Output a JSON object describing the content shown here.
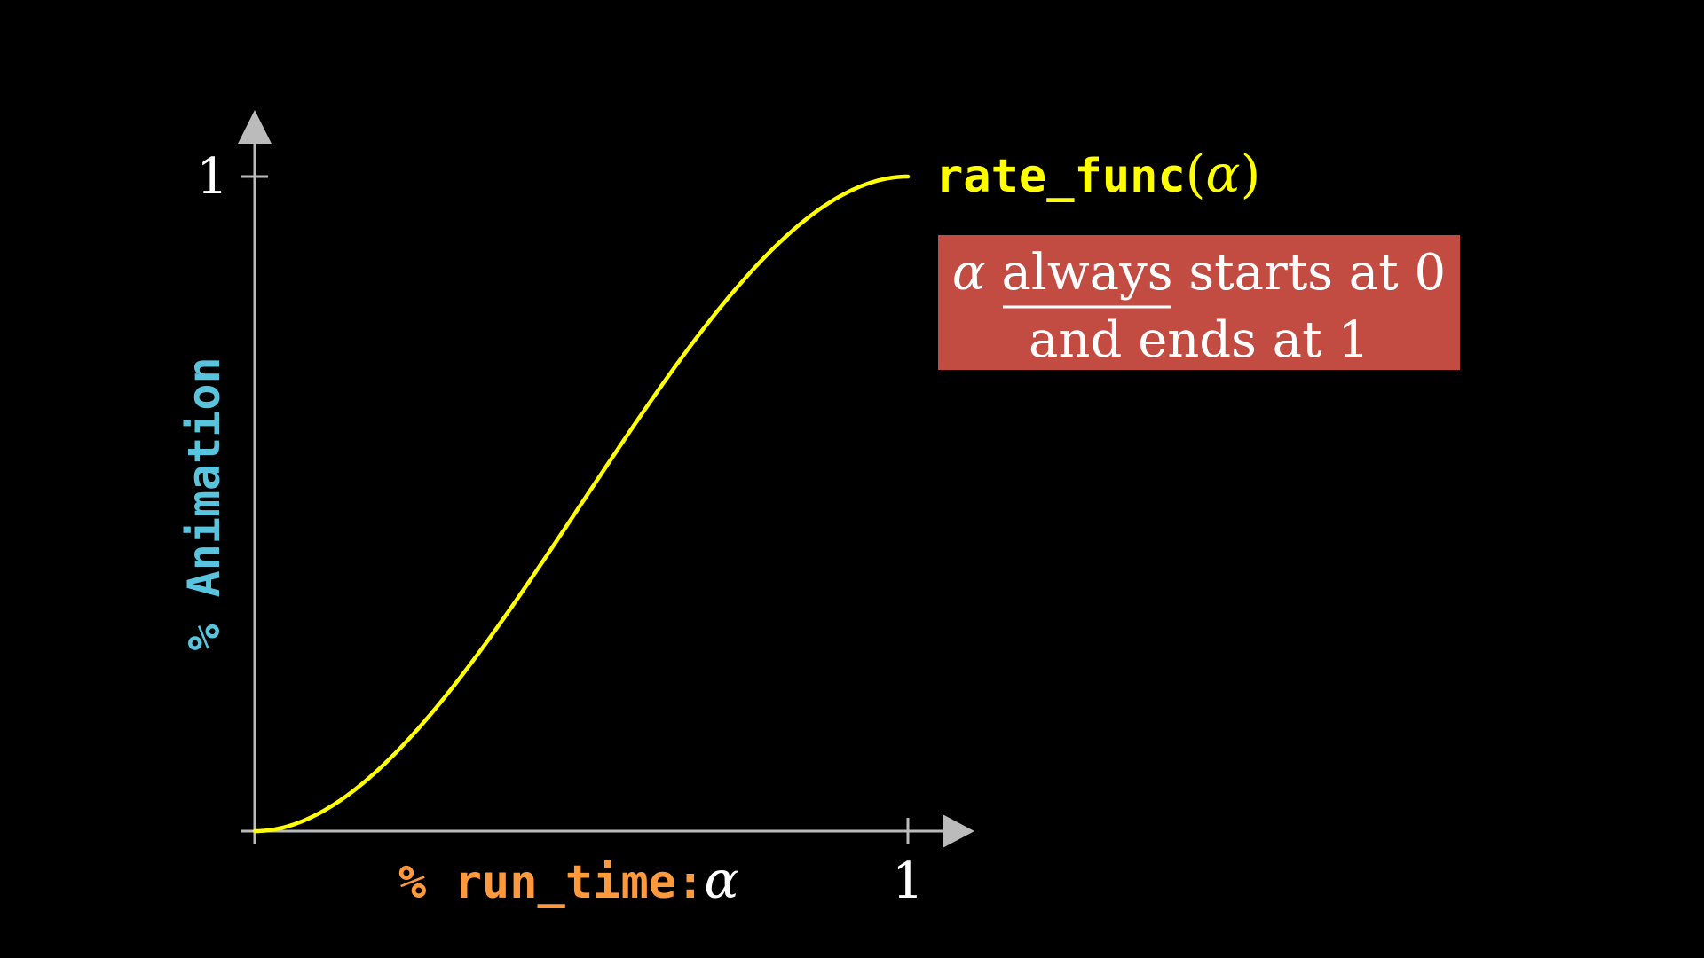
{
  "chart_data": {
    "type": "line",
    "title": "",
    "xlabel": {
      "text": "% run_time:",
      "symbol": "α"
    },
    "ylabel": "% Animation",
    "xlim": [
      0,
      1
    ],
    "ylim": [
      0,
      1
    ],
    "x_ticks": [
      {
        "value": 1,
        "label": "1"
      }
    ],
    "y_ticks": [
      {
        "value": 1,
        "label": "1"
      }
    ],
    "series": [
      {
        "name": "rate_func",
        "label_parts": [
          "rate_func",
          "(",
          "α",
          ")"
        ],
        "function": "smooth",
        "x": [
          0,
          0.05,
          0.1,
          0.15,
          0.2,
          0.25,
          0.3,
          0.35,
          0.4,
          0.45,
          0.5,
          0.55,
          0.6,
          0.65,
          0.7,
          0.75,
          0.8,
          0.85,
          0.9,
          0.95,
          1.0
        ],
        "y": [
          0,
          0.001,
          0.009,
          0.027,
          0.058,
          0.104,
          0.163,
          0.235,
          0.317,
          0.406,
          0.5,
          0.594,
          0.683,
          0.765,
          0.837,
          0.896,
          0.942,
          0.973,
          0.991,
          0.999,
          1.0
        ]
      }
    ],
    "annotation": {
      "symbol": "α",
      "underlined": "always",
      "rest_line1": "starts at 0",
      "line2": "and ends at 1"
    },
    "colors": {
      "background": "#000000",
      "curve": "#ffff00",
      "axes": "#bbbbbb",
      "xlabel": "#ff9a3c",
      "ylabel": "#58c4dd",
      "annotation_box": "#c24b42",
      "text": "#ffffff"
    },
    "grid": false
  }
}
